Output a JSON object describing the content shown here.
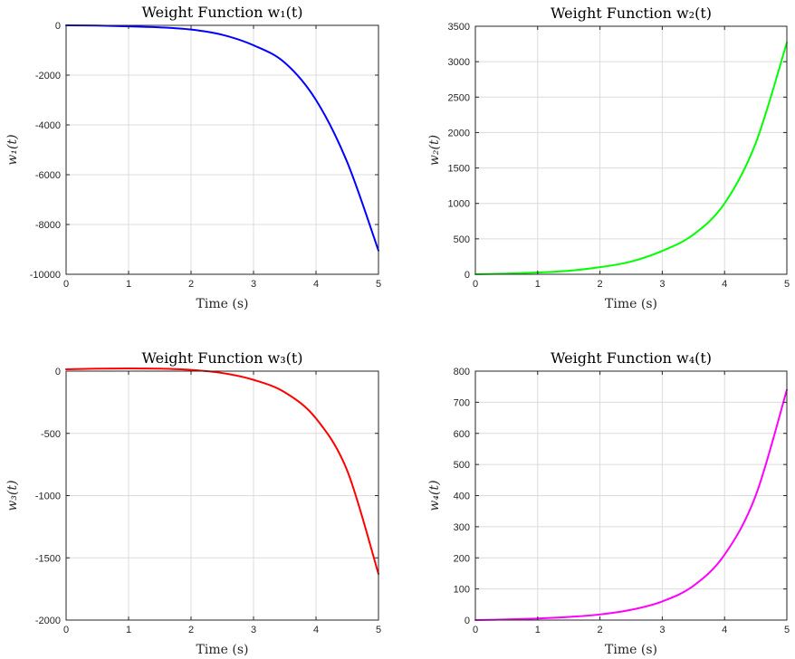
{
  "chart_data": [
    {
      "type": "line",
      "title": "Weight Function w₁(t)",
      "xlabel": "Time (s)",
      "ylabel": "w₁(t)",
      "xlim": [
        0,
        5
      ],
      "ylim": [
        -10000,
        0
      ],
      "xticks": [
        0,
        1,
        2,
        3,
        4,
        5
      ],
      "yticks": [
        -10000,
        -8000,
        -6000,
        -4000,
        -2000,
        0
      ],
      "grid": true,
      "color": "#0000ff",
      "x": [
        0,
        0.5,
        1,
        1.5,
        2,
        2.5,
        3,
        3.5,
        4,
        4.5,
        5
      ],
      "y": [
        0,
        -10,
        -40,
        -80,
        -170,
        -380,
        -800,
        -1500,
        -3000,
        -5500,
        -9050
      ]
    },
    {
      "type": "line",
      "title": "Weight Function w₂(t)",
      "xlabel": "Time (s)",
      "ylabel": "w₂(t)",
      "xlim": [
        0,
        5
      ],
      "ylim": [
        0,
        3500
      ],
      "xticks": [
        0,
        1,
        2,
        3,
        4,
        5
      ],
      "yticks": [
        0,
        500,
        1000,
        1500,
        2000,
        2500,
        3000,
        3500
      ],
      "grid": true,
      "color": "#00ff00",
      "x": [
        0,
        0.5,
        1,
        1.5,
        2,
        2.5,
        3,
        3.5,
        4,
        4.5,
        5
      ],
      "y": [
        0,
        10,
        25,
        50,
        100,
        180,
        330,
        560,
        1000,
        1850,
        3270
      ]
    },
    {
      "type": "line",
      "title": "Weight Function w₃(t)",
      "xlabel": "Time (s)",
      "ylabel": "w₃(t)",
      "xlim": [
        0,
        5
      ],
      "ylim": [
        -2000,
        0
      ],
      "xticks": [
        0,
        1,
        2,
        3,
        4,
        5
      ],
      "yticks": [
        -2000,
        -1500,
        -1000,
        -500,
        0
      ],
      "grid": true,
      "color": "#ff0000",
      "x": [
        0,
        0.5,
        1,
        1.5,
        2,
        2.5,
        3,
        3.5,
        4,
        4.5,
        5
      ],
      "y": [
        15,
        20,
        22,
        20,
        10,
        -15,
        -70,
        -170,
        -380,
        -800,
        -1630
      ]
    },
    {
      "type": "line",
      "title": "Weight Function w₄(t)",
      "xlabel": "Time (s)",
      "ylabel": "w₄(t)",
      "xlim": [
        0,
        5
      ],
      "ylim": [
        0,
        800
      ],
      "xticks": [
        0,
        1,
        2,
        3,
        4,
        5
      ],
      "yticks": [
        0,
        100,
        200,
        300,
        400,
        500,
        600,
        700,
        800
      ],
      "grid": true,
      "color": "#ff00ff",
      "x": [
        0,
        0.5,
        1,
        1.5,
        2,
        2.5,
        3,
        3.5,
        4,
        4.5,
        5
      ],
      "y": [
        0,
        2,
        5,
        10,
        18,
        33,
        60,
        110,
        210,
        400,
        740
      ]
    }
  ]
}
